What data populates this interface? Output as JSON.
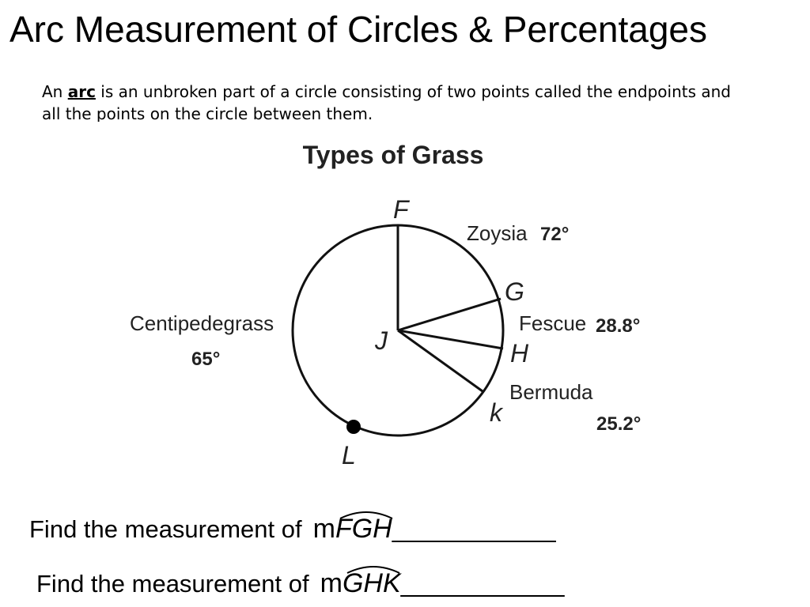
{
  "title": "Arc Measurement of Circles & Percentages",
  "definition": {
    "before": "An",
    "term": "arc",
    "after": "is an unbroken part of a circle consisting of two points called the endpoints and all the points on the circle between them."
  },
  "diagram": {
    "title": "Types of Grass",
    "points": [
      "F",
      "G",
      "H",
      "J",
      "k",
      "L"
    ],
    "sectors": [
      {
        "name": "Zoysia",
        "measure": "72°"
      },
      {
        "name": "Fescue",
        "measure": "28.8°"
      },
      {
        "name": "Bermuda",
        "measure": "25.2°"
      },
      {
        "name": "Centipedegrass",
        "measure": "65°"
      }
    ]
  },
  "questions": [
    {
      "prompt": "Find the measurement of",
      "m": "m",
      "arc": "FGH",
      "blank": "____________"
    },
    {
      "prompt": "Find the measurement of",
      "m": "m",
      "arc": "GHK",
      "blank": "____________"
    }
  ]
}
